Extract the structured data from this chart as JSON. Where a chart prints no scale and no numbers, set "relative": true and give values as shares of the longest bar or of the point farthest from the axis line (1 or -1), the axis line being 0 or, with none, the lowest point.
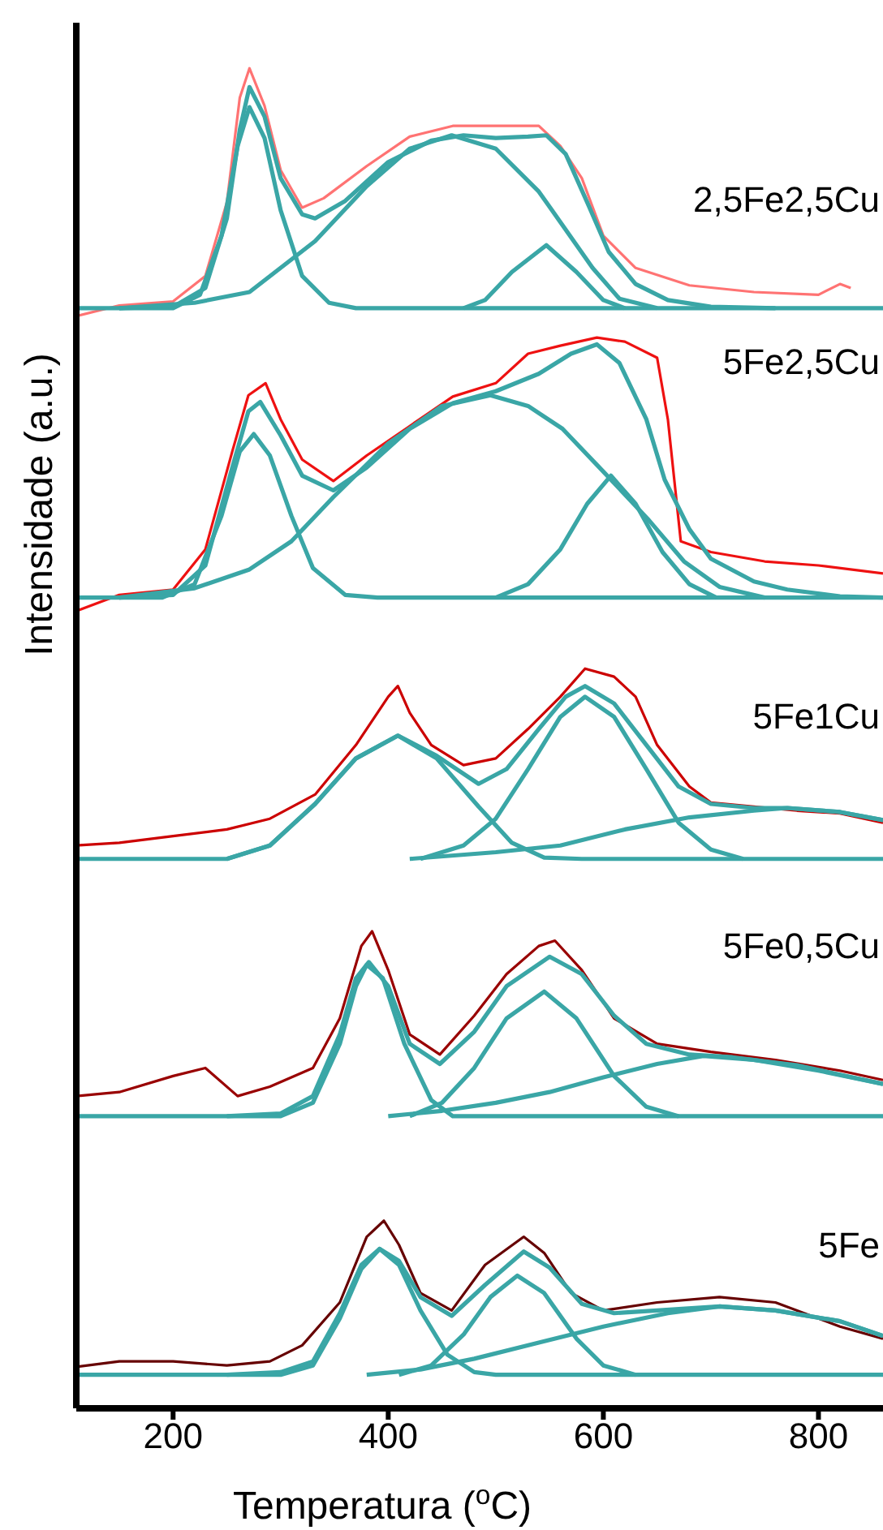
{
  "chart_data": {
    "type": "line",
    "relative": true,
    "xlabel": "Temperatura ($^{o}$C)",
    "ylabel": "Intensidade (a.u.)",
    "xlim": [
      110,
      860
    ],
    "xticks": [
      200,
      400,
      600,
      800
    ],
    "marker": "none",
    "series": [
      {
        "name": "2,5Fe2,5Cu",
        "color": "#ff7373",
        "x": [
          110,
          150,
          200,
          230,
          250,
          262,
          271,
          285,
          300,
          320,
          340,
          380,
          420,
          460,
          500,
          540,
          560,
          580,
          600,
          630,
          680,
          740,
          800,
          820,
          830
        ],
        "values": [
          0.815,
          0.823,
          0.826,
          0.845,
          0.9,
          0.978,
          1.0,
          0.972,
          0.924,
          0.896,
          0.903,
          0.927,
          0.949,
          0.957,
          0.957,
          0.957,
          0.942,
          0.918,
          0.875,
          0.851,
          0.838,
          0.833,
          0.831,
          0.839,
          0.836
        ]
      },
      {
        "color": "#3aa6a6",
        "x": [
          150,
          200,
          230,
          250,
          262,
          271,
          285,
          300,
          320,
          332,
          360,
          400,
          440,
          470,
          500,
          530,
          547,
          565,
          585,
          605,
          630,
          660,
          700,
          760
        ],
        "values": [
          0.821,
          0.822,
          0.836,
          0.888,
          0.954,
          0.986,
          0.964,
          0.918,
          0.891,
          0.888,
          0.901,
          0.93,
          0.946,
          0.95,
          0.948,
          0.949,
          0.95,
          0.936,
          0.9,
          0.863,
          0.839,
          0.827,
          0.822,
          0.821
        ]
      },
      {
        "color": "#3aa6a6",
        "x": [
          110,
          200,
          225,
          245,
          260,
          271,
          285,
          300,
          320,
          345,
          370,
          860
        ],
        "values": [
          0.821,
          0.821,
          0.831,
          0.875,
          0.942,
          0.971,
          0.948,
          0.894,
          0.845,
          0.825,
          0.821,
          0.821
        ]
      },
      {
        "color": "#3aa6a6",
        "x": [
          150,
          220,
          271,
          332,
          380,
          420,
          459,
          500,
          540,
          562,
          590,
          615,
          650
        ],
        "values": [
          0.821,
          0.825,
          0.833,
          0.871,
          0.912,
          0.94,
          0.95,
          0.94,
          0.908,
          0.883,
          0.851,
          0.828,
          0.821
        ]
      },
      {
        "color": "#3aa6a6",
        "x": [
          470,
          490,
          515,
          547,
          575,
          600,
          620
        ],
        "values": [
          0.821,
          0.827,
          0.848,
          0.868,
          0.848,
          0.827,
          0.821
        ]
      },
      {
        "name": "5Fe2,5Cu",
        "color": "#ee1111",
        "x": [
          110,
          150,
          200,
          230,
          255,
          270,
          286,
          300,
          320,
          349,
          380,
          420,
          460,
          500,
          530,
          560,
          594,
          620,
          650,
          660,
          672,
          700,
          750,
          800,
          860
        ],
        "values": [
          0.595,
          0.607,
          0.611,
          0.641,
          0.714,
          0.756,
          0.765,
          0.738,
          0.708,
          0.692,
          0.711,
          0.733,
          0.755,
          0.765,
          0.787,
          0.793,
          0.799,
          0.796,
          0.784,
          0.738,
          0.647,
          0.639,
          0.632,
          0.629,
          0.623
        ]
      },
      {
        "color": "#3aa6a6",
        "x": [
          150,
          200,
          230,
          255,
          270,
          281,
          300,
          320,
          349,
          380,
          420,
          460,
          500,
          540,
          570,
          594,
          615,
          640,
          657,
          680,
          700,
          740,
          771,
          820,
          860
        ],
        "values": [
          0.605,
          0.607,
          0.629,
          0.702,
          0.744,
          0.751,
          0.726,
          0.696,
          0.685,
          0.702,
          0.731,
          0.75,
          0.759,
          0.772,
          0.787,
          0.794,
          0.78,
          0.738,
          0.693,
          0.656,
          0.634,
          0.617,
          0.611,
          0.606,
          0.605
        ]
      },
      {
        "color": "#3aa6a6",
        "x": [
          110,
          190,
          220,
          245,
          262,
          275,
          290,
          310,
          330,
          360,
          390,
          860
        ],
        "values": [
          0.605,
          0.605,
          0.615,
          0.666,
          0.714,
          0.727,
          0.711,
          0.666,
          0.627,
          0.607,
          0.605,
          0.605
        ]
      },
      {
        "color": "#3aa6a6",
        "x": [
          150,
          220,
          271,
          310,
          349,
          400,
          450,
          495,
          530,
          562,
          600,
          641,
          675,
          708,
          750
        ],
        "values": [
          0.605,
          0.612,
          0.626,
          0.647,
          0.68,
          0.72,
          0.748,
          0.756,
          0.748,
          0.731,
          0.699,
          0.664,
          0.632,
          0.613,
          0.605
        ]
      },
      {
        "color": "#3aa6a6",
        "x": [
          500,
          530,
          560,
          585,
          607,
          630,
          655,
          680,
          705
        ],
        "values": [
          0.605,
          0.615,
          0.641,
          0.675,
          0.696,
          0.675,
          0.639,
          0.615,
          0.605
        ]
      },
      {
        "name": "5Fe1Cu",
        "color": "#cc0000",
        "x": [
          110,
          150,
          200,
          250,
          290,
          332,
          370,
          400,
          409,
          420,
          440,
          470,
          500,
          530,
          560,
          583,
          610,
          630,
          650,
          680,
          700,
          740,
          780,
          820,
          860
        ],
        "values": [
          0.42,
          0.422,
          0.427,
          0.432,
          0.44,
          0.458,
          0.495,
          0.531,
          0.539,
          0.519,
          0.495,
          0.48,
          0.485,
          0.507,
          0.531,
          0.552,
          0.546,
          0.531,
          0.495,
          0.464,
          0.452,
          0.449,
          0.446,
          0.444,
          0.437
        ]
      },
      {
        "color": "#3aa6a6",
        "x": [
          250,
          290,
          332,
          370,
          409,
          445,
          484,
          510,
          540,
          565,
          583,
          610,
          640,
          670,
          700,
          740,
          771,
          820,
          860
        ],
        "values": [
          0.41,
          0.42,
          0.451,
          0.485,
          0.502,
          0.487,
          0.466,
          0.477,
          0.507,
          0.531,
          0.539,
          0.526,
          0.495,
          0.464,
          0.451,
          0.448,
          0.448,
          0.445,
          0.439
        ]
      },
      {
        "color": "#3aa6a6",
        "x": [
          110,
          250,
          290,
          332,
          370,
          409,
          445,
          484,
          515,
          545,
          580,
          860
        ],
        "values": [
          0.41,
          0.41,
          0.42,
          0.451,
          0.485,
          0.502,
          0.485,
          0.449,
          0.422,
          0.411,
          0.41,
          0.41
        ]
      },
      {
        "color": "#3aa6a6",
        "x": [
          430,
          470,
          500,
          530,
          560,
          583,
          610,
          640,
          670,
          700,
          730
        ],
        "values": [
          0.41,
          0.42,
          0.44,
          0.477,
          0.516,
          0.531,
          0.516,
          0.477,
          0.437,
          0.417,
          0.41
        ]
      },
      {
        "color": "#3aa6a6",
        "x": [
          420,
          500,
          560,
          620,
          680,
          740,
          771,
          820,
          860
        ],
        "values": [
          0.41,
          0.415,
          0.42,
          0.432,
          0.441,
          0.446,
          0.448,
          0.445,
          0.439
        ]
      },
      {
        "name": "5Fe0,5Cu",
        "color": "#990000",
        "x": [
          110,
          150,
          200,
          230,
          260,
          290,
          330,
          355,
          375,
          385,
          400,
          420,
          448,
          480,
          510,
          540,
          555,
          580,
          610,
          650,
          700,
          760,
          820,
          860
        ],
        "values": [
          0.233,
          0.236,
          0.248,
          0.254,
          0.233,
          0.24,
          0.254,
          0.291,
          0.345,
          0.356,
          0.327,
          0.279,
          0.264,
          0.293,
          0.324,
          0.345,
          0.349,
          0.327,
          0.291,
          0.272,
          0.266,
          0.26,
          0.252,
          0.245
        ]
      },
      {
        "color": "#3aa6a6",
        "x": [
          250,
          300,
          330,
          355,
          370,
          382,
          400,
          420,
          448,
          480,
          510,
          550,
          580,
          610,
          640,
          680,
          720,
          780,
          860
        ],
        "values": [
          0.218,
          0.22,
          0.233,
          0.279,
          0.321,
          0.333,
          0.315,
          0.272,
          0.257,
          0.281,
          0.315,
          0.337,
          0.324,
          0.293,
          0.272,
          0.264,
          0.262,
          0.256,
          0.242
        ]
      },
      {
        "color": "#3aa6a6",
        "x": [
          110,
          300,
          330,
          355,
          370,
          380,
          395,
          415,
          440,
          460,
          860
        ],
        "values": [
          0.218,
          0.218,
          0.228,
          0.272,
          0.315,
          0.331,
          0.321,
          0.272,
          0.23,
          0.218,
          0.218
        ]
      },
      {
        "color": "#3aa6a6",
        "x": [
          420,
          450,
          480,
          510,
          545,
          575,
          610,
          640,
          670
        ],
        "values": [
          0.218,
          0.228,
          0.254,
          0.291,
          0.311,
          0.291,
          0.248,
          0.225,
          0.218
        ]
      },
      {
        "color": "#3aa6a6",
        "x": [
          400,
          450,
          500,
          550,
          600,
          650,
          693,
          740,
          800,
          860
        ],
        "values": [
          0.218,
          0.222,
          0.228,
          0.236,
          0.247,
          0.257,
          0.263,
          0.26,
          0.252,
          0.242
        ]
      },
      {
        "name": "5Fe",
        "color": "#660000",
        "x": [
          110,
          150,
          200,
          250,
          290,
          320,
          355,
          380,
          396,
          410,
          430,
          459,
          490,
          526,
          545,
          570,
          600,
          650,
          708,
          760,
          820,
          860
        ],
        "values": [
          0.031,
          0.035,
          0.035,
          0.032,
          0.035,
          0.047,
          0.079,
          0.128,
          0.14,
          0.122,
          0.086,
          0.073,
          0.107,
          0.128,
          0.116,
          0.086,
          0.073,
          0.079,
          0.083,
          0.079,
          0.061,
          0.052
        ]
      },
      {
        "color": "#3aa6a6",
        "x": [
          250,
          300,
          330,
          355,
          375,
          392,
          410,
          430,
          459,
          490,
          526,
          550,
          580,
          610,
          650,
          708,
          760,
          820,
          860
        ],
        "values": [
          0.025,
          0.027,
          0.035,
          0.071,
          0.107,
          0.119,
          0.11,
          0.083,
          0.069,
          0.092,
          0.117,
          0.105,
          0.078,
          0.071,
          0.073,
          0.076,
          0.073,
          0.065,
          0.054
        ]
      },
      {
        "color": "#3aa6a6",
        "x": [
          110,
          300,
          330,
          355,
          375,
          392,
          410,
          430,
          455,
          480,
          500,
          860
        ],
        "values": [
          0.025,
          0.025,
          0.032,
          0.067,
          0.104,
          0.119,
          0.107,
          0.073,
          0.04,
          0.027,
          0.025,
          0.025
        ]
      },
      {
        "color": "#3aa6a6",
        "x": [
          410,
          440,
          470,
          495,
          520,
          545,
          575,
          600,
          630
        ],
        "values": [
          0.025,
          0.032,
          0.055,
          0.083,
          0.099,
          0.086,
          0.052,
          0.032,
          0.025
        ]
      },
      {
        "color": "#3aa6a6",
        "x": [
          380,
          430,
          480,
          540,
          600,
          660,
          708,
          760,
          820,
          860
        ],
        "values": [
          0.025,
          0.029,
          0.037,
          0.049,
          0.061,
          0.071,
          0.076,
          0.073,
          0.065,
          0.054
        ]
      }
    ]
  }
}
